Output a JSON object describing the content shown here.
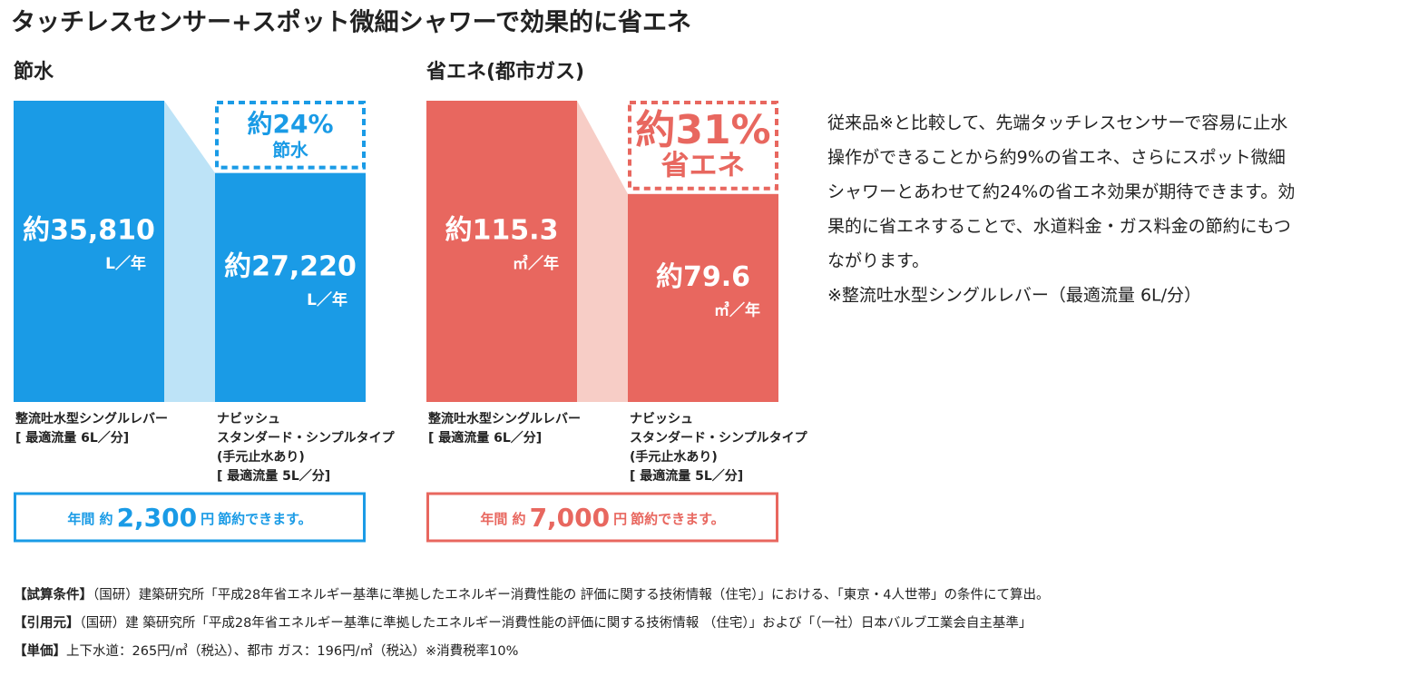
{
  "title": "タッチレスセンサー+スポット微細シャワーで効果的に省エネ",
  "chart_data": [
    {
      "type": "bar",
      "title": "節水",
      "color": "#1a9be6",
      "light_color": "#bde3f7",
      "categories": [
        [
          "整流吐水型シングルレバー",
          "[ 最適流量 6L／分]"
        ],
        [
          "ナビッシュ",
          "スタンダード・シンプルタイプ",
          "(手元止水あり)",
          "[ 最適流量 5L／分]"
        ]
      ],
      "values": [
        35810,
        27220
      ],
      "value_labels": [
        "約35,810",
        "約27,220"
      ],
      "unit": "L／年",
      "annotation": [
        "約24%",
        "節水"
      ],
      "footer": [
        "年間 約",
        "2,300",
        "円",
        "節約できます。"
      ]
    },
    {
      "type": "bar",
      "title": "省エネ(都市ガス)",
      "color": "#e8675f",
      "light_color": "#f7cdc6",
      "categories": [
        [
          "整流吐水型シングルレバー",
          "[ 最適流量 6L／分]"
        ],
        [
          "ナビッシュ",
          "スタンダード・シンプルタイプ",
          "(手元止水あり)",
          "[ 最適流量 5L／分]"
        ]
      ],
      "values": [
        115.3,
        79.6
      ],
      "value_labels": [
        "約115.3",
        "約79.6"
      ],
      "unit": "㎥／年",
      "annotation": [
        "約31%",
        "省エネ"
      ],
      "footer": [
        "年間 約",
        "7,000",
        "円",
        "節約できます。"
      ]
    }
  ],
  "description": [
    "従来品※と比較して、先端タッチレスセンサーで容易に止水",
    "操作ができることから約9%の省エネ、さらにスポット微細",
    "シャワーとあわせて約24%の省エネ効果が期待できます。効",
    "果的に省エネすることで、水道料金・ガス料金の節約にもつ",
    "ながります。",
    "※整流吐水型シングルレバー（最適流量 6L/分）"
  ],
  "notes": [
    {
      "label": "【試算条件】",
      "text": "（国研）建築研究所「平成28年省エネルギー基準に準拠したエネルギー消費性能の 評価に関する技術情報（住宅）」における、「東京・4人世帯」の条件にて算出。"
    },
    {
      "label": "【引用元】",
      "text": "（国研）建 築研究所「平成28年省エネルギー基準に準拠したエネルギー消費性能の評価に関する技術情報 （住宅）」および「（一社）日本バルブ工業会自主基準」"
    },
    {
      "label": "【単価】",
      "text": "上下水道：265円/㎥（税込）、都市 ガス：196円/㎥（税込）※消費税率10%"
    }
  ]
}
